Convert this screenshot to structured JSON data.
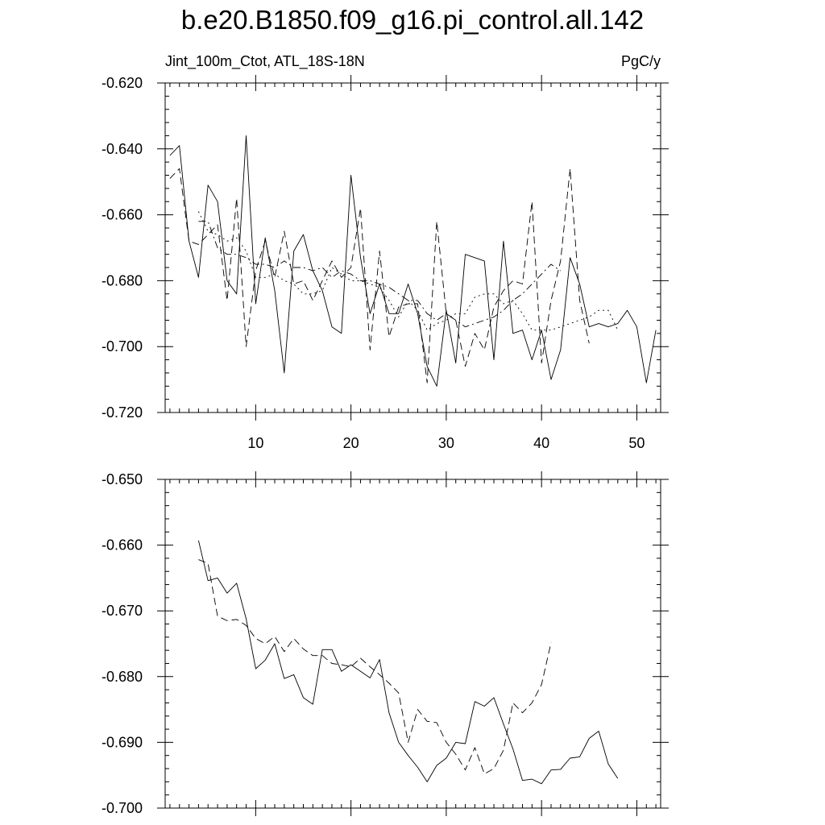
{
  "figure": {
    "title": "b.e20.B1850.f09_g16.pi_control.all.142",
    "left_label": "Jint_100m_Ctot, ATL_18S-18N",
    "right_label": "PgC/y"
  },
  "chart_data": [
    {
      "type": "line",
      "xlim": [
        0.5,
        52.5
      ],
      "ylim": [
        -0.72,
        -0.62
      ],
      "x_ticks": [
        10,
        20,
        30,
        40,
        50
      ],
      "y_ticks": [
        -0.62,
        -0.64,
        -0.66,
        -0.68,
        -0.7,
        -0.72
      ],
      "x_tick_labels": [
        "10",
        "20",
        "30",
        "40",
        "50"
      ],
      "y_tick_labels": [
        "-0.620",
        "-0.640",
        "-0.660",
        "-0.680",
        "-0.700",
        "-0.720"
      ],
      "series": [
        {
          "style": "solid",
          "x": [
            1,
            2,
            3,
            4,
            5,
            6,
            7,
            8,
            9,
            10,
            11,
            12,
            13,
            14,
            15,
            16,
            17,
            18,
            19,
            20,
            21,
            22,
            23,
            24,
            25,
            26,
            27,
            28,
            29,
            30,
            31,
            32,
            33,
            34,
            35,
            36,
            37,
            38,
            39,
            40,
            41,
            42,
            43,
            44,
            45,
            46,
            47,
            48,
            49,
            50,
            51,
            52
          ],
          "values": [
            -0.642,
            -0.639,
            -0.668,
            -0.679,
            -0.651,
            -0.656,
            -0.68,
            -0.684,
            -0.636,
            -0.687,
            -0.667,
            -0.683,
            -0.708,
            -0.671,
            -0.666,
            -0.677,
            -0.683,
            -0.694,
            -0.696,
            -0.648,
            -0.673,
            -0.69,
            -0.681,
            -0.69,
            -0.69,
            -0.681,
            -0.69,
            -0.706,
            -0.712,
            -0.689,
            -0.705,
            -0.672,
            -0.673,
            -0.674,
            -0.704,
            -0.668,
            -0.696,
            -0.695,
            -0.704,
            -0.695,
            -0.71,
            -0.701,
            -0.673,
            -0.681,
            -0.694,
            -0.693,
            -0.694,
            -0.693,
            -0.689,
            -0.694,
            -0.711,
            -0.695
          ]
        },
        {
          "style": "dashed",
          "x": [
            1,
            2,
            3,
            4,
            5,
            6,
            7,
            8,
            9,
            10,
            11,
            12,
            13,
            14,
            15,
            16,
            17,
            18,
            19,
            20,
            21,
            22,
            23,
            24,
            25,
            26,
            27,
            28,
            29,
            30,
            31,
            32,
            33,
            34,
            35,
            36,
            37,
            38,
            39,
            40,
            41,
            42,
            43,
            44,
            45
          ],
          "values": [
            -0.649,
            -0.646,
            -0.668,
            -0.669,
            -0.666,
            -0.663,
            -0.686,
            -0.655,
            -0.7,
            -0.677,
            -0.668,
            -0.679,
            -0.665,
            -0.681,
            -0.68,
            -0.686,
            -0.68,
            -0.674,
            -0.679,
            -0.676,
            -0.658,
            -0.701,
            -0.671,
            -0.697,
            -0.688,
            -0.687,
            -0.687,
            -0.711,
            -0.662,
            -0.69,
            -0.692,
            -0.706,
            -0.696,
            -0.701,
            -0.688,
            -0.683,
            -0.68,
            -0.681,
            -0.656,
            -0.705,
            -0.686,
            -0.674,
            -0.646,
            -0.686,
            -0.699
          ]
        },
        {
          "style": "dashdot",
          "x": [
            4,
            5,
            6,
            7,
            8,
            9,
            10,
            11,
            12,
            13,
            14,
            15,
            16,
            17,
            18,
            19,
            20,
            21,
            22,
            23,
            24,
            25,
            26,
            27,
            28,
            29,
            30,
            31,
            32,
            33,
            34,
            35,
            36,
            37,
            38,
            39,
            40,
            41,
            42
          ],
          "values": [
            -0.662,
            -0.662,
            -0.67,
            -0.672,
            -0.672,
            -0.673,
            -0.675,
            -0.675,
            -0.676,
            -0.674,
            -0.676,
            -0.676,
            -0.677,
            -0.676,
            -0.679,
            -0.677,
            -0.678,
            -0.68,
            -0.68,
            -0.681,
            -0.682,
            -0.684,
            -0.686,
            -0.686,
            -0.69,
            -0.692,
            -0.69,
            -0.692,
            -0.694,
            -0.693,
            -0.692,
            -0.691,
            -0.689,
            -0.686,
            -0.684,
            -0.681,
            -0.678,
            -0.675,
            -0.677
          ]
        },
        {
          "style": "dotted",
          "x": [
            4,
            5,
            6,
            7,
            8,
            9,
            10,
            11,
            12,
            13,
            14,
            15,
            16,
            17,
            18,
            19,
            20,
            21,
            22,
            23,
            24,
            25,
            26,
            27,
            28,
            29,
            30,
            31,
            32,
            33,
            34,
            35,
            36,
            37,
            38,
            39,
            40,
            41,
            42,
            43,
            44,
            45,
            46,
            47,
            48
          ],
          "values": [
            -0.659,
            -0.665,
            -0.666,
            -0.668,
            -0.667,
            -0.671,
            -0.679,
            -0.679,
            -0.678,
            -0.68,
            -0.681,
            -0.684,
            -0.684,
            -0.683,
            -0.676,
            -0.678,
            -0.68,
            -0.68,
            -0.681,
            -0.682,
            -0.686,
            -0.691,
            -0.686,
            -0.689,
            -0.695,
            -0.693,
            -0.692,
            -0.69,
            -0.69,
            -0.685,
            -0.684,
            -0.684,
            -0.687,
            -0.686,
            -0.69,
            -0.695,
            -0.695,
            -0.695,
            -0.694,
            -0.693,
            -0.692,
            -0.691,
            -0.689,
            -0.689,
            -0.695
          ]
        }
      ]
    },
    {
      "type": "line",
      "xlim": [
        0.5,
        52.5
      ],
      "ylim": [
        -0.7,
        -0.65
      ],
      "x_ticks": [
        10,
        20,
        30,
        40,
        50
      ],
      "y_ticks": [
        -0.65,
        -0.66,
        -0.67,
        -0.68,
        -0.69,
        -0.7
      ],
      "y_tick_labels": [
        "-0.650",
        "-0.660",
        "-0.670",
        "-0.680",
        "-0.690",
        "-0.700"
      ],
      "series": [
        {
          "style": "solid",
          "x": [
            4,
            5,
            6,
            7,
            8,
            9,
            10,
            11,
            12,
            13,
            14,
            15,
            16,
            17,
            18,
            19,
            20,
            21,
            22,
            23,
            24,
            25,
            26,
            27,
            28,
            29,
            30,
            31,
            32,
            33,
            34,
            35,
            36,
            37,
            38,
            39,
            40,
            41,
            42,
            43,
            44,
            45,
            46,
            47,
            48
          ],
          "values": [
            -0.6593,
            -0.6654,
            -0.665,
            -0.6673,
            -0.6658,
            -0.6712,
            -0.6788,
            -0.6775,
            -0.675,
            -0.6803,
            -0.6797,
            -0.6832,
            -0.6842,
            -0.6759,
            -0.6759,
            -0.6792,
            -0.6782,
            -0.6792,
            -0.6802,
            -0.6774,
            -0.6855,
            -0.69,
            -0.692,
            -0.6938,
            -0.696,
            -0.6935,
            -0.6924,
            -0.69,
            -0.6902,
            -0.6838,
            -0.6845,
            -0.6832,
            -0.6872,
            -0.691,
            -0.6958,
            -0.6956,
            -0.6963,
            -0.6942,
            -0.6941,
            -0.6924,
            -0.6922,
            -0.6894,
            -0.6883,
            -0.6933,
            -0.6955
          ]
        },
        {
          "style": "dashed",
          "x": [
            4,
            5,
            6,
            7,
            8,
            9,
            10,
            11,
            12,
            13,
            14,
            15,
            16,
            17,
            18,
            19,
            20,
            21,
            22,
            23,
            24,
            25,
            26,
            27,
            28,
            29,
            30,
            31,
            32,
            33,
            34,
            35,
            36,
            37,
            38,
            39,
            40,
            41
          ],
          "values": [
            -0.6622,
            -0.6628,
            -0.6708,
            -0.6715,
            -0.6713,
            -0.6722,
            -0.6742,
            -0.675,
            -0.6739,
            -0.6762,
            -0.6742,
            -0.6758,
            -0.6768,
            -0.6768,
            -0.678,
            -0.6782,
            -0.6785,
            -0.6772,
            -0.6785,
            -0.6797,
            -0.681,
            -0.6825,
            -0.69,
            -0.685,
            -0.6868,
            -0.687,
            -0.69,
            -0.6918,
            -0.6942,
            -0.6908,
            -0.6948,
            -0.694,
            -0.6912,
            -0.684,
            -0.6855,
            -0.684,
            -0.6812,
            -0.6748
          ]
        }
      ]
    }
  ]
}
